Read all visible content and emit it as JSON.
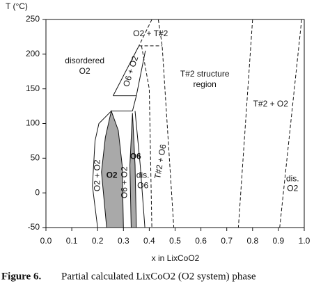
{
  "chart_data": {
    "type": "phase",
    "ylabel": "T (°C)",
    "xlabel": "x in LixCoO2",
    "caption_label": "Figure 6.",
    "caption": "Partial calculated LixCoO2 (O2 system) phase",
    "xlim": [
      0,
      1
    ],
    "ylim": [
      -50,
      250
    ],
    "xticks": [
      {
        "value": 0,
        "label": "0.0"
      },
      {
        "value": 0.1,
        "label": "0.1"
      },
      {
        "value": 0.2,
        "label": "0.2"
      },
      {
        "value": 0.3,
        "label": "0.3"
      },
      {
        "value": 0.4,
        "label": "0.4"
      },
      {
        "value": 0.5,
        "label": "0.5"
      },
      {
        "value": 0.6,
        "label": "0.6"
      },
      {
        "value": 0.7,
        "label": "0.7"
      },
      {
        "value": 0.8,
        "label": "0.8"
      },
      {
        "value": 0.9,
        "label": "0.9"
      },
      {
        "value": 1,
        "label": "1.0"
      }
    ],
    "yticks": [
      -50,
      0,
      50,
      100,
      150,
      200,
      250
    ],
    "series": [
      {
        "x": [
          0.235,
          0.215,
          0.23,
          0.253,
          0.28,
          0.295,
          0.3
        ],
        "values": [
          -50,
          30,
          80,
          118,
          90,
          40,
          -50
        ],
        "fill": "#a9a9a9",
        "dashed": false
      },
      {
        "x": [
          0.33,
          0.325,
          0.335,
          0.345,
          0.35
        ],
        "values": [
          -50,
          40,
          115,
          40,
          -50
        ],
        "fill": "#a9a9a9",
        "dashed": false
      },
      {
        "x": [
          0.2,
          0.18,
          0.19,
          0.205,
          0.253
        ],
        "values": [
          -50,
          10,
          75,
          100,
          118
        ],
        "dashed": false
      },
      {
        "x": [
          0.253,
          0.335
        ],
        "values": [
          118,
          118
        ],
        "dashed": false
      },
      {
        "x": [
          0.26,
          0.35
        ],
        "values": [
          140,
          140
        ],
        "dashed": false
      },
      {
        "x": [
          0.26,
          0.36
        ],
        "values": [
          140,
          212
        ],
        "dashed": false
      },
      {
        "x": [
          0.335,
          0.35,
          0.385
        ],
        "values": [
          118,
          140,
          205
        ],
        "dashed": false
      },
      {
        "x": [
          0.345,
          0.365,
          0.383
        ],
        "values": [
          118,
          40,
          -50
        ],
        "dashed": false
      },
      {
        "x": [
          0.41,
          0.36
        ],
        "values": [
          250,
          212
        ],
        "dashed": true
      },
      {
        "x": [
          0.36,
          0.45
        ],
        "values": [
          212,
          212
        ],
        "dashed": true
      },
      {
        "x": [
          0.435,
          0.45,
          0.495
        ],
        "values": [
          250,
          212,
          -50
        ],
        "dashed": true
      },
      {
        "x": [
          0.37,
          0.4,
          0.41
        ],
        "values": [
          212,
          150,
          -50
        ],
        "dashed": true
      },
      {
        "x": [
          0.8,
          0.745
        ],
        "values": [
          250,
          -50
        ],
        "dashed": true
      },
      {
        "x": [
          0.99,
          0.905
        ],
        "values": [
          250,
          -50
        ],
        "dashed": true
      }
    ],
    "annotations": [
      "disordered",
      "O2",
      "O2 + T#2",
      "O6 + O2",
      "T#2 structure",
      "region",
      "T#2 + O2",
      "O2 + O2",
      "O2",
      "O6",
      "O6 + O2",
      "T#2 + O6",
      "dis.",
      "O6",
      "dis.",
      "O2"
    ]
  }
}
